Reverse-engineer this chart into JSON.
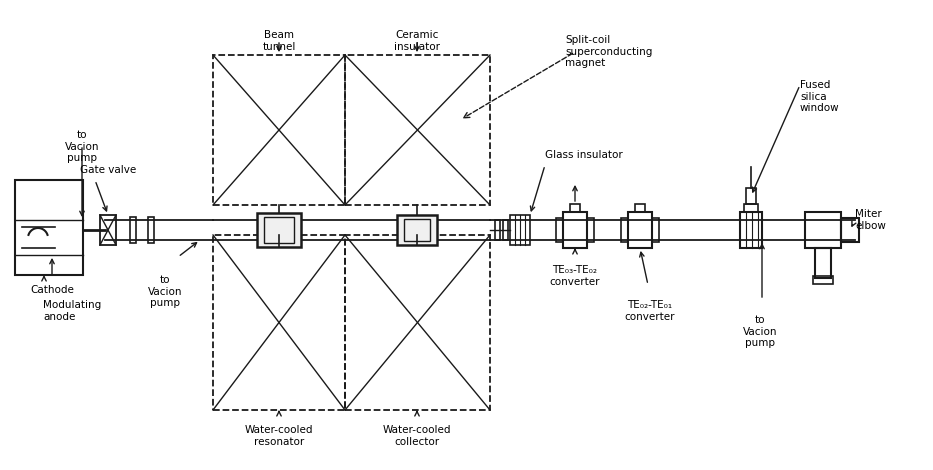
{
  "bg_color": "#ffffff",
  "line_color": "#1a1a1a",
  "text_color": "#000000",
  "labels": {
    "beam_tunnel": "Beam\ntunnel",
    "ceramic_insulator": "Ceramic\ninsulator",
    "split_coil": "Split-coil\nsuperconducting\nmagnet",
    "glass_insulator": "Glass insulator",
    "fused_silica": "Fused\nsilica\nwindow",
    "miter_elbow": "Miter\nelbow",
    "to_vacion_pump_tr": "to\nVacion\npump",
    "te03_te02": "TE₀₃-TE₀₂\nconverter",
    "te02_te01": "TE₀₂-TE₀₁\nconverter",
    "water_cooled_resonator": "Water-cooled\nresonator",
    "water_cooled_collector": "Water-cooled\ncollector",
    "cathode": "Cathode",
    "modulating_anode": "Modulating\nanode",
    "gate_valve": "Gate valve",
    "to_vacion_pump_tl": "to\nVacion\npump",
    "to_vacion_pump_bl": "to\nVacion\npump"
  },
  "figsize": [
    9.33,
    4.7
  ],
  "dpi": 100
}
